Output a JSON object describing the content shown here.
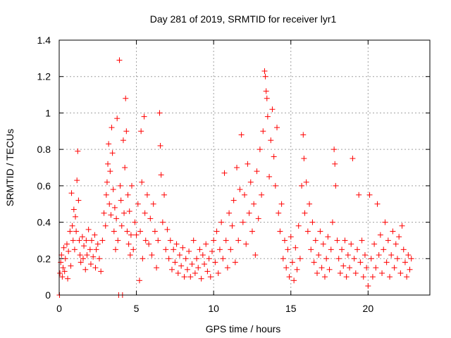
{
  "chart_data": {
    "type": "scatter",
    "title": "Day 281 of 2019, SRMTID for receiver lyr1",
    "xlabel": "GPS time / hours",
    "ylabel": "SRMTID / TECUs",
    "xlim": [
      0,
      24
    ],
    "ylim": [
      0,
      1.4
    ],
    "xticks": [
      0,
      5,
      10,
      15,
      20
    ],
    "xtick_labels": [
      "0",
      "5",
      "10",
      "15",
      "20"
    ],
    "yticks": [
      0,
      0.2,
      0.4,
      0.6,
      0.8,
      1.0,
      1.2,
      1.4
    ],
    "ytick_labels": [
      "0",
      "0.2",
      "0.4",
      "0.6",
      "0.8",
      "1",
      "1.2",
      "1.4"
    ],
    "grid": true,
    "marker": "+",
    "color": "#ff0000",
    "series": [
      {
        "name": "SRMTID",
        "points": [
          [
            0.02,
            0.0
          ],
          [
            0.05,
            0.12
          ],
          [
            0.1,
            0.18
          ],
          [
            0.15,
            0.22
          ],
          [
            0.2,
            0.1
          ],
          [
            0.25,
            0.15
          ],
          [
            0.3,
            0.26
          ],
          [
            0.35,
            0.13
          ],
          [
            0.4,
            0.2
          ],
          [
            0.5,
            0.28
          ],
          [
            0.55,
            0.09
          ],
          [
            0.6,
            0.24
          ],
          [
            0.7,
            0.35
          ],
          [
            0.75,
            0.16
          ],
          [
            0.8,
            0.56
          ],
          [
            0.85,
            0.38
          ],
          [
            0.9,
            0.3
          ],
          [
            0.95,
            0.47
          ],
          [
            1.0,
            0.25
          ],
          [
            1.05,
            0.43
          ],
          [
            1.1,
            0.35
          ],
          [
            1.15,
            0.63
          ],
          [
            1.2,
            0.79
          ],
          [
            1.25,
            0.52
          ],
          [
            1.3,
            0.3
          ],
          [
            1.35,
            0.22
          ],
          [
            1.4,
            0.18
          ],
          [
            1.5,
            0.32
          ],
          [
            1.55,
            0.2
          ],
          [
            1.6,
            0.27
          ],
          [
            1.7,
            0.14
          ],
          [
            1.75,
            0.3
          ],
          [
            1.8,
            0.22
          ],
          [
            1.9,
            0.36
          ],
          [
            2.0,
            0.25
          ],
          [
            2.05,
            0.17
          ],
          [
            2.1,
            0.3
          ],
          [
            2.2,
            0.21
          ],
          [
            2.3,
            0.33
          ],
          [
            2.35,
            0.15
          ],
          [
            2.4,
            0.25
          ],
          [
            2.5,
            0.28
          ],
          [
            2.6,
            0.2
          ],
          [
            2.7,
            0.13
          ],
          [
            2.8,
            0.3
          ],
          [
            2.9,
            0.45
          ],
          [
            3.0,
            0.38
          ],
          [
            3.05,
            0.55
          ],
          [
            3.1,
            0.62
          ],
          [
            3.15,
            0.72
          ],
          [
            3.2,
            0.83
          ],
          [
            3.25,
            0.5
          ],
          [
            3.3,
            0.68
          ],
          [
            3.35,
            0.44
          ],
          [
            3.4,
            0.92
          ],
          [
            3.45,
            0.78
          ],
          [
            3.5,
            0.58
          ],
          [
            3.55,
            0.35
          ],
          [
            3.6,
            0.48
          ],
          [
            3.65,
            0.25
          ],
          [
            3.7,
            0.42
          ],
          [
            3.75,
            0.97
          ],
          [
            3.8,
            0.3
          ],
          [
            3.85,
            0.0
          ],
          [
            3.9,
            1.29
          ],
          [
            3.95,
            0.6
          ],
          [
            4.0,
            0.52
          ],
          [
            4.05,
            0.38
          ],
          [
            4.1,
            0.0
          ],
          [
            4.15,
            0.85
          ],
          [
            4.2,
            0.45
          ],
          [
            4.25,
            0.7
          ],
          [
            4.3,
            1.08
          ],
          [
            4.35,
            0.9
          ],
          [
            4.4,
            0.35
          ],
          [
            4.45,
            0.55
          ],
          [
            4.5,
            0.28
          ],
          [
            4.55,
            0.46
          ],
          [
            4.6,
            0.22
          ],
          [
            4.65,
            0.33
          ],
          [
            4.7,
            0.6
          ],
          [
            4.8,
            0.25
          ],
          [
            4.9,
            0.4
          ],
          [
            5.0,
            0.33
          ],
          [
            5.1,
            0.5
          ],
          [
            5.2,
            0.08
          ],
          [
            5.25,
            0.35
          ],
          [
            5.3,
            0.9
          ],
          [
            5.35,
            0.62
          ],
          [
            5.4,
            0.2
          ],
          [
            5.5,
            0.98
          ],
          [
            5.55,
            0.45
          ],
          [
            5.6,
            0.3
          ],
          [
            5.7,
            0.55
          ],
          [
            5.8,
            0.28
          ],
          [
            5.9,
            0.42
          ],
          [
            6.0,
            0.22
          ],
          [
            6.1,
            0.5
          ],
          [
            6.2,
            0.35
          ],
          [
            6.3,
            0.15
          ],
          [
            6.4,
            0.3
          ],
          [
            6.5,
            1.0
          ],
          [
            6.55,
            0.82
          ],
          [
            6.6,
            0.66
          ],
          [
            6.7,
            0.4
          ],
          [
            6.8,
            0.55
          ],
          [
            6.9,
            0.25
          ],
          [
            7.0,
            0.36
          ],
          [
            7.1,
            0.2
          ],
          [
            7.2,
            0.3
          ],
          [
            7.3,
            0.14
          ],
          [
            7.4,
            0.25
          ],
          [
            7.5,
            0.18
          ],
          [
            7.6,
            0.28
          ],
          [
            7.7,
            0.12
          ],
          [
            7.8,
            0.22
          ],
          [
            7.9,
            0.16
          ],
          [
            8.0,
            0.26
          ],
          [
            8.1,
            0.1
          ],
          [
            8.2,
            0.2
          ],
          [
            8.3,
            0.14
          ],
          [
            8.4,
            0.24
          ],
          [
            8.5,
            0.1
          ],
          [
            8.6,
            0.17
          ],
          [
            8.7,
            0.3
          ],
          [
            8.8,
            0.12
          ],
          [
            8.9,
            0.2
          ],
          [
            9.0,
            0.15
          ],
          [
            9.1,
            0.25
          ],
          [
            9.2,
            0.09
          ],
          [
            9.3,
            0.22
          ],
          [
            9.4,
            0.17
          ],
          [
            9.5,
            0.28
          ],
          [
            9.6,
            0.13
          ],
          [
            9.7,
            0.2
          ],
          [
            9.8,
            0.1
          ],
          [
            9.9,
            0.24
          ],
          [
            10.0,
            0.3
          ],
          [
            10.1,
            0.18
          ],
          [
            10.2,
            0.35
          ],
          [
            10.3,
            0.12
          ],
          [
            10.4,
            0.25
          ],
          [
            10.5,
            0.4
          ],
          [
            10.6,
            0.2
          ],
          [
            10.7,
            0.67
          ],
          [
            10.8,
            0.3
          ],
          [
            10.9,
            0.15
          ],
          [
            11.0,
            0.45
          ],
          [
            11.1,
            0.25
          ],
          [
            11.2,
            0.38
          ],
          [
            11.3,
            0.52
          ],
          [
            11.4,
            0.18
          ],
          [
            11.5,
            0.7
          ],
          [
            11.6,
            0.3
          ],
          [
            11.7,
            0.58
          ],
          [
            11.8,
            0.88
          ],
          [
            11.9,
            0.4
          ],
          [
            12.0,
            0.55
          ],
          [
            12.1,
            0.28
          ],
          [
            12.2,
            0.72
          ],
          [
            12.3,
            0.45
          ],
          [
            12.4,
            0.62
          ],
          [
            12.5,
            0.35
          ],
          [
            12.6,
            0.5
          ],
          [
            12.7,
            0.22
          ],
          [
            12.8,
            0.68
          ],
          [
            12.9,
            0.42
          ],
          [
            13.0,
            0.8
          ],
          [
            13.1,
            0.55
          ],
          [
            13.2,
            0.9
          ],
          [
            13.3,
            1.23
          ],
          [
            13.35,
            1.2
          ],
          [
            13.4,
            1.12
          ],
          [
            13.45,
            1.08
          ],
          [
            13.5,
            0.98
          ],
          [
            13.6,
            0.65
          ],
          [
            13.7,
            0.85
          ],
          [
            13.8,
            1.02
          ],
          [
            13.9,
            0.76
          ],
          [
            14.0,
            0.6
          ],
          [
            14.1,
            0.92
          ],
          [
            14.2,
            0.45
          ],
          [
            14.3,
            0.35
          ],
          [
            14.4,
            0.5
          ],
          [
            14.5,
            0.2
          ],
          [
            14.6,
            0.3
          ],
          [
            14.7,
            0.15
          ],
          [
            14.8,
            0.25
          ],
          [
            14.9,
            0.1
          ],
          [
            15.0,
            0.32
          ],
          [
            15.1,
            0.18
          ],
          [
            15.2,
            0.08
          ],
          [
            15.3,
            0.26
          ],
          [
            15.4,
            0.14
          ],
          [
            15.5,
            0.38
          ],
          [
            15.6,
            0.2
          ],
          [
            15.7,
            0.6
          ],
          [
            15.8,
            0.88
          ],
          [
            15.85,
            0.75
          ],
          [
            15.9,
            0.45
          ],
          [
            16.0,
            0.62
          ],
          [
            16.1,
            0.35
          ],
          [
            16.2,
            0.5
          ],
          [
            16.3,
            0.25
          ],
          [
            16.4,
            0.4
          ],
          [
            16.5,
            0.18
          ],
          [
            16.6,
            0.3
          ],
          [
            16.7,
            0.12
          ],
          [
            16.8,
            0.22
          ],
          [
            16.9,
            0.35
          ],
          [
            17.0,
            0.15
          ],
          [
            17.1,
            0.28
          ],
          [
            17.2,
            0.1
          ],
          [
            17.3,
            0.2
          ],
          [
            17.4,
            0.32
          ],
          [
            17.5,
            0.14
          ],
          [
            17.6,
            0.25
          ],
          [
            17.7,
            0.4
          ],
          [
            17.8,
            0.8
          ],
          [
            17.85,
            0.72
          ],
          [
            17.9,
            0.6
          ],
          [
            18.0,
            0.3
          ],
          [
            18.1,
            0.2
          ],
          [
            18.2,
            0.12
          ],
          [
            18.3,
            0.25
          ],
          [
            18.4,
            0.16
          ],
          [
            18.5,
            0.3
          ],
          [
            18.6,
            0.1
          ],
          [
            18.7,
            0.22
          ],
          [
            18.8,
            0.15
          ],
          [
            18.9,
            0.28
          ],
          [
            19.0,
            0.75
          ],
          [
            19.1,
            0.2
          ],
          [
            19.2,
            0.12
          ],
          [
            19.3,
            0.25
          ],
          [
            19.4,
            0.55
          ],
          [
            19.5,
            0.18
          ],
          [
            19.6,
            0.3
          ],
          [
            19.7,
            0.1
          ],
          [
            19.8,
            0.22
          ],
          [
            19.9,
            0.15
          ],
          [
            20.0,
            0.05
          ],
          [
            20.1,
            0.55
          ],
          [
            20.2,
            0.2
          ],
          [
            20.3,
            0.1
          ],
          [
            20.4,
            0.28
          ],
          [
            20.5,
            0.15
          ],
          [
            20.6,
            0.5
          ],
          [
            20.7,
            0.22
          ],
          [
            20.8,
            0.33
          ],
          [
            20.9,
            0.12
          ],
          [
            21.0,
            0.25
          ],
          [
            21.1,
            0.4
          ],
          [
            21.2,
            0.18
          ],
          [
            21.3,
            0.3
          ],
          [
            21.4,
            0.1
          ],
          [
            21.5,
            0.22
          ],
          [
            21.6,
            0.35
          ],
          [
            21.7,
            0.15
          ],
          [
            21.8,
            0.28
          ],
          [
            21.9,
            0.2
          ],
          [
            22.0,
            0.32
          ],
          [
            22.1,
            0.12
          ],
          [
            22.2,
            0.38
          ],
          [
            22.3,
            0.25
          ],
          [
            22.4,
            0.18
          ],
          [
            22.5,
            0.1
          ],
          [
            22.6,
            0.22
          ],
          [
            22.7,
            0.14
          ],
          [
            22.8,
            0.2
          ]
        ]
      }
    ]
  }
}
